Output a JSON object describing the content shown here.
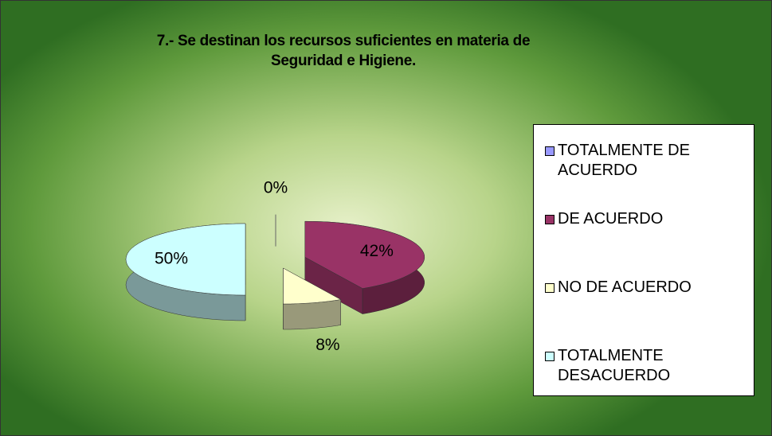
{
  "chart_data": {
    "type": "pie",
    "title": "7.- Se destinan los recursos suficientes en materia de Seguridad e Higiene.",
    "categories": [
      "TOTALMENTE DE ACUERDO",
      "DE ACUERDO",
      "NO DE ACUERDO",
      "TOTALMENTE DESACUERDO"
    ],
    "values": [
      0,
      42,
      8,
      50
    ],
    "value_labels": [
      "0%",
      "42%",
      "8%",
      "50%"
    ],
    "colors": [
      "#9999ff",
      "#993366",
      "#ffffcc",
      "#ccffff"
    ],
    "legend": "right"
  }
}
